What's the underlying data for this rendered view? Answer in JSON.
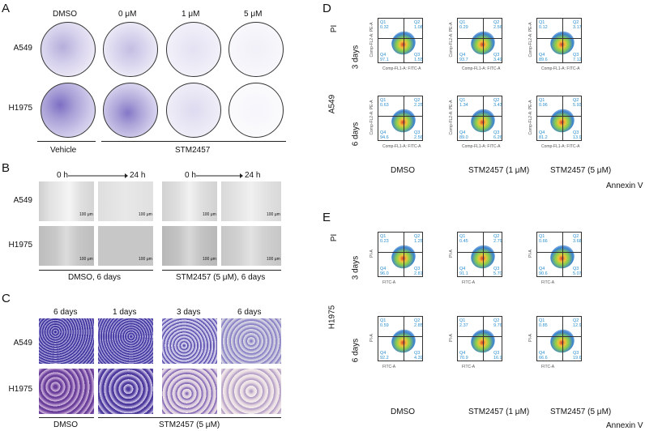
{
  "panels": {
    "A": "A",
    "B": "B",
    "C": "C",
    "D": "D",
    "E": "E"
  },
  "panelA": {
    "columns": [
      "DMSO",
      "0 μM",
      "1 μM",
      "5 μM"
    ],
    "rows": [
      "A549",
      "H1975"
    ],
    "groups": [
      "Vehicle",
      "STM2457"
    ]
  },
  "panelB": {
    "times": [
      "0 h",
      "24 h",
      "0 h",
      "24 h"
    ],
    "rows": [
      "A549",
      "H1975"
    ],
    "scale": "100 μm",
    "groups": [
      "DMSO, 6 days",
      "STM2457 (5 μM), 6 days"
    ]
  },
  "panelC": {
    "columns": [
      "6 days",
      "1 days",
      "3 days",
      "6 days"
    ],
    "rows": [
      "A549",
      "H1975"
    ],
    "groups": [
      "DMSO",
      "STM2457 (5 μM)"
    ]
  },
  "panelD": {
    "y_axis": "PI",
    "x_axis": "Annexin V",
    "cell_line": "A549",
    "rows": [
      "3 days",
      "6 days"
    ],
    "columns": [
      "DMSO",
      "STM2457 (1 μM)",
      "STM2457 (5 μM)"
    ],
    "xlabel": "Comp-FL1-A: FITC-A",
    "ylabel": "Comp-FL2-A: PE-A",
    "quadrants": [
      [
        [
          "0.32",
          "1.08",
          "1.55",
          "97.1"
        ],
        [
          "0.29",
          "2.56",
          "3.49",
          "93.7"
        ],
        [
          "0.12",
          "3.17",
          "7.12",
          "89.6"
        ]
      ],
      [
        [
          "0.63",
          "2.25",
          "2.56",
          "94.6"
        ],
        [
          "1.34",
          "3.43",
          "6.26",
          "89.0"
        ],
        [
          "0.96",
          "5.93",
          "13.9",
          "81.2"
        ]
      ]
    ]
  },
  "panelE": {
    "y_axis": "PI",
    "x_axis": "Annexin V",
    "cell_line": "H1975",
    "rows": [
      "3 days",
      "6 days"
    ],
    "columns": [
      "DMSO",
      "STM2457 (1 μM)",
      "STM2457 (5 μM)"
    ],
    "xlabel": "FITC-A",
    "ylabel": "PI-A",
    "quadrants": [
      [
        [
          "0.23",
          "1.25",
          "2.81",
          "96.0"
        ],
        [
          "0.45",
          "2.79",
          "5.70",
          "91.1"
        ],
        [
          "0.66",
          "3.68",
          "5.07",
          "90.6"
        ]
      ],
      [
        [
          "0.59",
          "2.85",
          "4.39",
          "92.2"
        ],
        [
          "2.37",
          "9.76",
          "16.9",
          "70.9"
        ],
        [
          "0.85",
          "12.9",
          "19.6",
          "66.6"
        ]
      ]
    ]
  },
  "quad_names": [
    "Q1",
    "Q2",
    "Q3",
    "Q4"
  ],
  "colors": {
    "crystal_violet": "#5b4bb0",
    "quadrant_text": "#2a8fd0"
  }
}
